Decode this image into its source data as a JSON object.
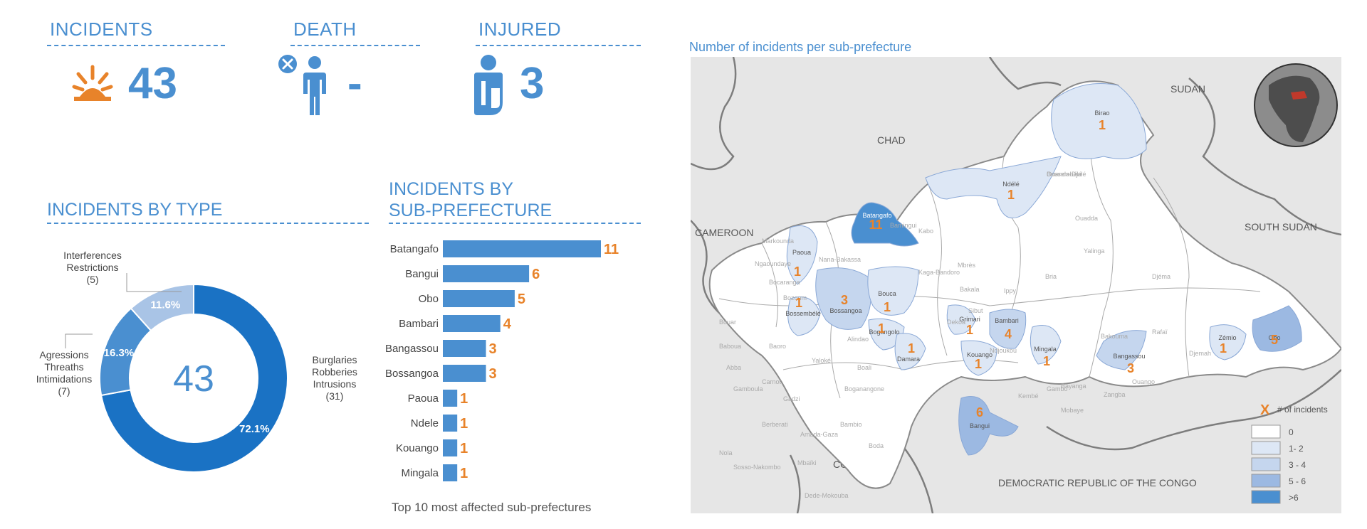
{
  "kpis": {
    "incidents": {
      "label": "INCIDENTS",
      "value": "43"
    },
    "death": {
      "label": "DEATH",
      "value": "-"
    },
    "injured": {
      "label": "INJURED",
      "value": "3"
    }
  },
  "colors": {
    "accent": "#4a8fd0",
    "orange": "#e8832a",
    "bar": "#4a8fd0",
    "donut_main": "#1a72c4",
    "donut_mid": "#4a8fd0",
    "donut_light": "#a9c4e6",
    "map_base": "#e6e6e6",
    "lvl0": "#ffffff",
    "lvl1": "#dde7f5",
    "lvl2": "#c5d6ee",
    "lvl3": "#9cb9e2",
    "lvl4": "#4a8fd0"
  },
  "incidents_by_type": {
    "title": "INCIDENTS BY TYPE",
    "center_value": "43",
    "labels": [
      {
        "text": "Burglaries\nRobberies\nIntrusions\n(31)"
      },
      {
        "text": "Agressions\nThreaths\nIntimidations\n(7)"
      },
      {
        "text": "Interferences\nRestrictions\n(5)"
      }
    ]
  },
  "incidents_by_subprefecture": {
    "title_line1": "INCIDENTS BY",
    "title_line2": "SUB-PREFECTURE",
    "caption": "Top 10 most affected sub-prefectures"
  },
  "map": {
    "title": "Number of incidents per sub-prefecture",
    "countries": [
      "CHAD",
      "SUDAN",
      "CAMEROON",
      "SOUTH SUDAN",
      "CONGO",
      "DEMOCRATIC REPUBLIC OF THE CONGO"
    ],
    "legend_title": "# of incidents",
    "legend_marker": "X",
    "legend_items": [
      "0",
      "1- 2",
      "3 - 4",
      "5 - 6",
      ">6"
    ],
    "regions": [
      {
        "name": "Birao",
        "count": "1",
        "level": 1
      },
      {
        "name": "Ndélé",
        "count": "1",
        "level": 1
      },
      {
        "name": "Batangafo",
        "count": "11",
        "level": 4
      },
      {
        "name": "Paoua",
        "count": "1",
        "level": 1
      },
      {
        "name": "Bossangoa",
        "count": "3",
        "level": 2
      },
      {
        "name": "Bossembélé",
        "count": "1",
        "level": 1
      },
      {
        "name": "Bouca",
        "count": "1",
        "level": 1
      },
      {
        "name": "Bogangolo",
        "count": "1",
        "level": 1
      },
      {
        "name": "Damara",
        "count": "1",
        "level": 1
      },
      {
        "name": "Grimari",
        "count": "1",
        "level": 1
      },
      {
        "name": "Bambari",
        "count": "4",
        "level": 2
      },
      {
        "name": "Kouango",
        "count": "1",
        "level": 1
      },
      {
        "name": "Mingala",
        "count": "1",
        "level": 1
      },
      {
        "name": "Bangassou",
        "count": "3",
        "level": 2
      },
      {
        "name": "Zémio",
        "count": "1",
        "level": 1
      },
      {
        "name": "Obo",
        "count": "5",
        "level": 3
      },
      {
        "name": "Bangui",
        "count": "6",
        "level": 3
      }
    ],
    "minor_labels": [
      "Ouanda-Djalé",
      "Ouadda",
      "Bamingui",
      "Kabo",
      "Markounda",
      "Ngaoundaye",
      "Nana-Bakassa",
      "Kaga-Bandoro",
      "Mbrès",
      "Bakala",
      "Ippy",
      "Bria",
      "Yalinga",
      "Djéma",
      "Bocaranga",
      "Bozoum",
      "Bouar",
      "Baboua",
      "Abba",
      "Baoro",
      "Yaloké",
      "Dekoa",
      "Sibut",
      "Ndjoukou",
      "Bakouma",
      "Rafaï",
      "Djemah",
      "Carnot",
      "Gadzi",
      "Boali",
      "Boganangone",
      "Gamboula",
      "Berberati",
      "Amada-Gaza",
      "Bambio",
      "Boda",
      "Mbaïki",
      "Nola",
      "Sosso-Nakombo",
      "Dede-Mokouba",
      "Bayanga",
      "Kembé",
      "Mobaye",
      "Zangba",
      "Ouango",
      "Gambo",
      "Alindao",
      "Bossembélé"
    ]
  },
  "chart_data": [
    {
      "type": "pie",
      "title": "INCIDENTS BY TYPE",
      "categories": [
        "Burglaries Robberies Intrusions",
        "Agressions Threaths Intimidations",
        "Interferences Restrictions"
      ],
      "values": [
        31,
        7,
        5
      ],
      "percent_labels": [
        "72.1%",
        "16.3%",
        "11.6%"
      ],
      "center_value": 43,
      "donut": true
    },
    {
      "type": "bar",
      "orientation": "horizontal",
      "title": "INCIDENTS BY SUB-PREFECTURE",
      "categories": [
        "Batangafo",
        "Bangui",
        "Obo",
        "Bambari",
        "Bangassou",
        "Bossangoa",
        "Paoua",
        "Ndele",
        "Kouango",
        "Mingala"
      ],
      "values": [
        11,
        6,
        5,
        4,
        3,
        3,
        1,
        1,
        1,
        1
      ],
      "xlim": [
        0,
        11
      ],
      "grid": false,
      "caption": "Top 10 most affected sub-prefectures"
    }
  ]
}
